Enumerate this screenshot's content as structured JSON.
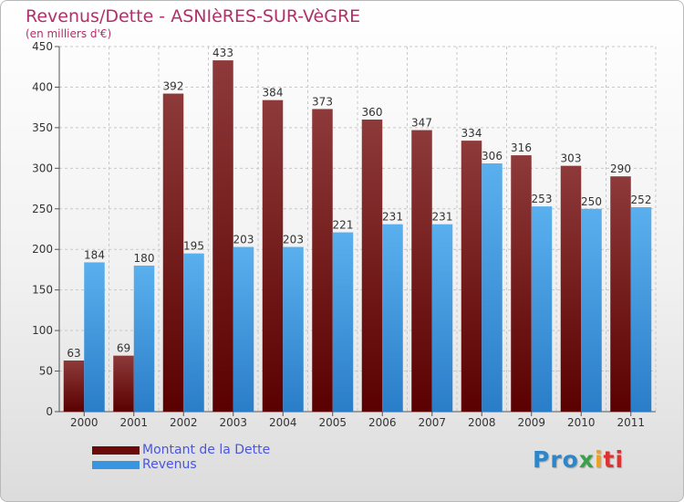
{
  "colors": {
    "dette": "#7a1010",
    "revenus": "#3a95e0",
    "title": "#b0306a",
    "legend_text": "#4a55e0"
  },
  "chart_data": {
    "type": "bar",
    "title": "Revenus/Dette - ASNIèRES-SUR-VèGRE",
    "subtitle": "(en milliers d'€)",
    "xlabel": "",
    "ylabel": "",
    "ylim": [
      0,
      450
    ],
    "yticks": [
      0,
      50,
      100,
      150,
      200,
      250,
      300,
      350,
      400,
      450
    ],
    "grid": true,
    "legend_position": "bottom-left",
    "categories": [
      "2000",
      "2001",
      "2002",
      "2003",
      "2004",
      "2005",
      "2006",
      "2007",
      "2008",
      "2009",
      "2010",
      "2011"
    ],
    "series": [
      {
        "name": "Montant de la Dette",
        "values": [
          63,
          69,
          392,
          433,
          384,
          373,
          360,
          347,
          334,
          316,
          303,
          290
        ]
      },
      {
        "name": "Revenus",
        "values": [
          184,
          180,
          195,
          203,
          203,
          221,
          231,
          231,
          306,
          253,
          250,
          252
        ]
      }
    ]
  },
  "logo": {
    "p1": "Pro",
    "p2": "x",
    "p3": "i",
    "p4": "ti"
  }
}
